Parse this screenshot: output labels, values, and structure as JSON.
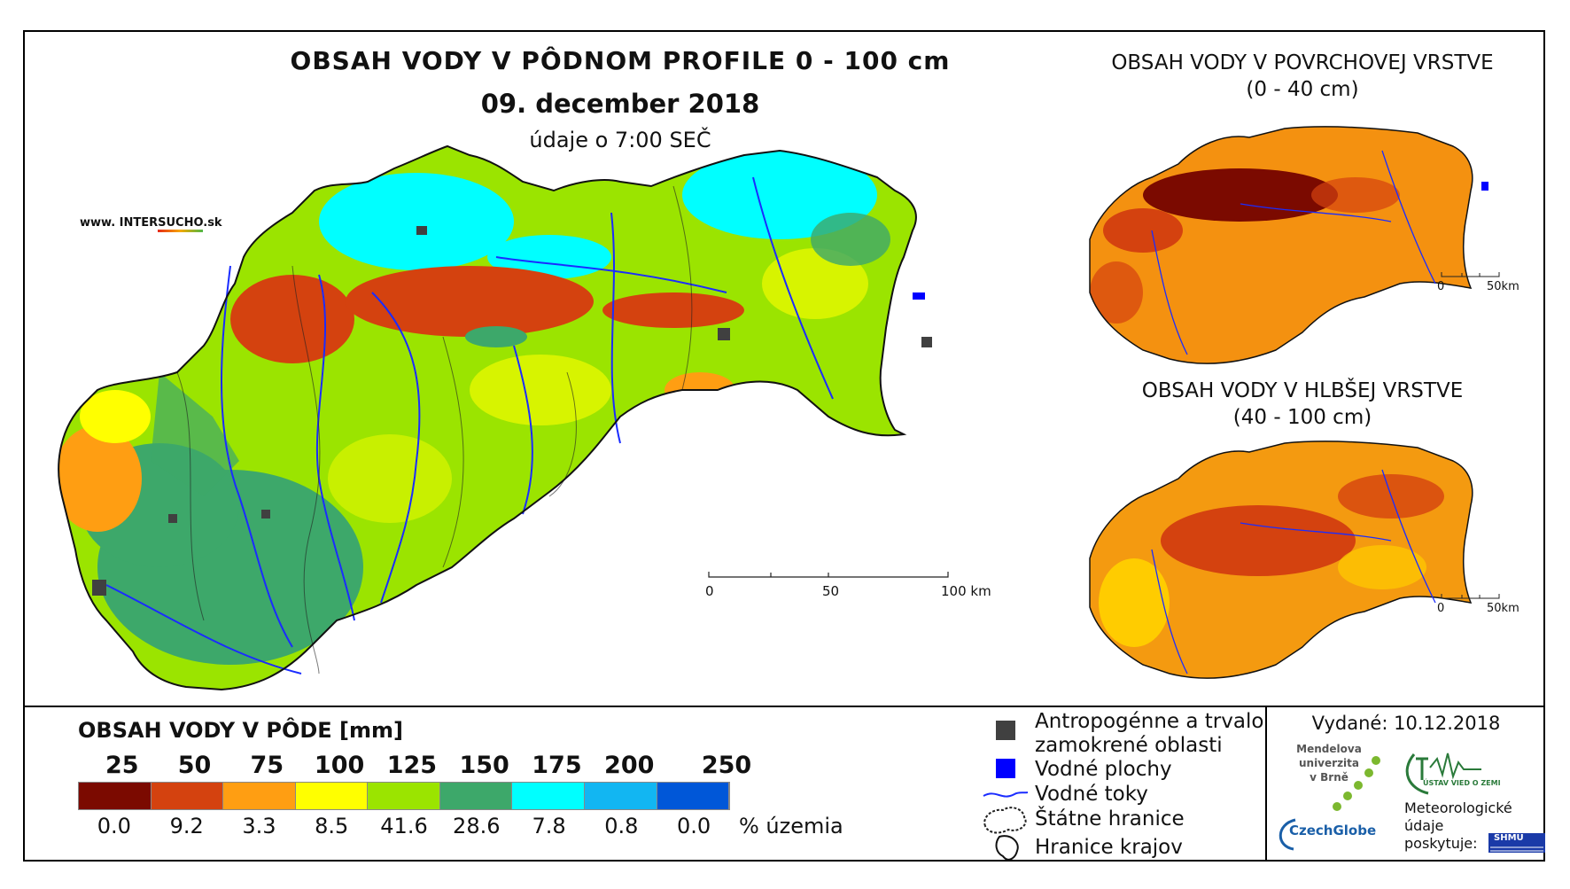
{
  "header": {
    "title": "OBSAH VODY V PÔDNOM PROFILE 0 - 100 cm",
    "date": "09. december 2018",
    "data_time": "údaje o 7:00 SEČ",
    "website_prefix": "www. INTER",
    "website_highlight": "SUCHO",
    "website_suffix": ".sk"
  },
  "main_map": {
    "scale": {
      "ticks": [
        "0",
        "50",
        "100 km"
      ]
    }
  },
  "inset_surface": {
    "title": "OBSAH VODY V POVRCHOVEJ VRSTVE",
    "depth": "(0 - 40 cm)",
    "scale": {
      "ticks": [
        "0",
        "50km"
      ]
    }
  },
  "inset_deep": {
    "title": "OBSAH VODY V HLBŠEJ VRSTVE",
    "depth": "(40 - 100 cm)",
    "scale": {
      "ticks": [
        "0",
        "50km"
      ]
    }
  },
  "legend": {
    "title": "OBSAH VODY V PÔDE [mm]",
    "breaks": [
      "25",
      "50",
      "75",
      "100",
      "125",
      "150",
      "175",
      "200",
      "250"
    ],
    "colors": [
      "#7b0a00",
      "#d4420f",
      "#ff9e12",
      "#ffff00",
      "#9be400",
      "#3da86a",
      "#00ffff",
      "#12b6f2",
      "#0057d8"
    ],
    "percentages": [
      "0.0",
      "9.2",
      "3.3",
      "8.5",
      "41.6",
      "28.6",
      "7.8",
      "0.8",
      "0.0"
    ],
    "percent_unit": "% územia"
  },
  "symbols": {
    "anthropogenic_line1": "Antropogénne a trvalo",
    "anthropogenic_line2": "zamokrené oblasti",
    "water_bodies": "Vodné plochy",
    "watercourses": "Vodné toky",
    "state_border": "Štátne hranice",
    "regional_border": "Hranice krajov",
    "colors": {
      "anthropogenic": "#404040",
      "water_bodies": "#0000ff",
      "watercourses": "#1a2cff"
    }
  },
  "footer": {
    "issued": "Vydané: 10.12.2018",
    "mendel_line1": "Mendelova",
    "mendel_line2": "univerzita",
    "mendel_line3": "v Brně",
    "czechglobe": "CzechGlobe",
    "ustav": "ÚSTAV VIED O ZEMI",
    "meteo_line1": "Meteorologické",
    "meteo_line2": "údaje",
    "meteo_line3": "poskytuje:",
    "shmu": "SHMÚ"
  }
}
